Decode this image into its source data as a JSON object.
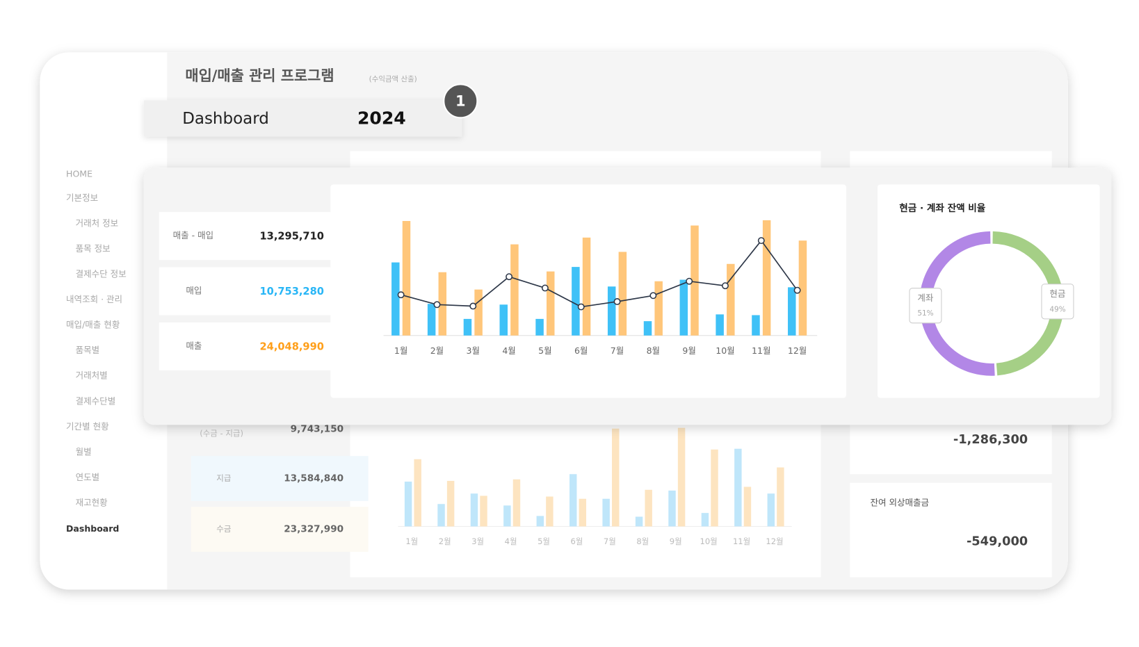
{
  "header": {
    "title": "매입/매출 관리 프로그램",
    "subtitle": "(수익금액 산출)"
  },
  "badge": {
    "label": "Dashboard",
    "year": "2024",
    "step": "1"
  },
  "sidebar": [
    "HOME",
    "기본정보",
    "거래처 정보",
    "품목 정보",
    "결제수단 정보",
    "내역조회 · 관리",
    "매입/매출 현황",
    "품목별",
    "거래처별",
    "결제수단별",
    "기간별 현황",
    "월별",
    "연도별",
    "재고현황",
    "Dashboard"
  ],
  "summary": [
    {
      "label": "매출 - 매입",
      "value": "13,295,710"
    },
    {
      "label": "매입",
      "value": "10,753,280"
    },
    {
      "label": "매출",
      "value": "24,048,990"
    }
  ],
  "back_summary": [
    {
      "label": "(수금 - 지급)",
      "value": "9,743,150"
    },
    {
      "label": "지급",
      "value": "13,584,840"
    },
    {
      "label": "수금",
      "value": "23,327,990"
    }
  ],
  "back_cards": [
    {
      "value": "-1,286,300"
    },
    {
      "label": "잔여 외상매출금",
      "value": "-549,000"
    }
  ],
  "chart_data": [
    {
      "type": "bar",
      "categories": [
        "1월",
        "2월",
        "3월",
        "4월",
        "5월",
        "6월",
        "7월",
        "8월",
        "9월",
        "10월",
        "11월",
        "12월"
      ],
      "series": [
        {
          "color": "#3fc1f7",
          "values": [
            97,
            42,
            22,
            41,
            22,
            91,
            65,
            19,
            74,
            28,
            27,
            64
          ]
        },
        {
          "color": "#ffc67a",
          "values": [
            152,
            84,
            61,
            121,
            85,
            130,
            111,
            72,
            146,
            95,
            153,
            126
          ]
        },
        {
          "type": "line",
          "color": "#2d3748",
          "values": [
            54,
            41,
            39,
            78,
            63,
            38,
            45,
            53,
            72,
            66,
            126,
            60
          ]
        }
      ],
      "ylim": [
        0,
        160
      ]
    },
    {
      "type": "pie",
      "title": "현금 · 계좌 잔액 비율",
      "categories": [
        "현금",
        "계좌"
      ],
      "values": [
        49,
        51
      ],
      "value_labels": [
        "49%",
        "51%"
      ],
      "colors": [
        "#a5cf86",
        "#b287e6"
      ]
    },
    {
      "type": "bar",
      "categories": [
        "1월",
        "2월",
        "3월",
        "4월",
        "5월",
        "6월",
        "7월",
        "8월",
        "9월",
        "10월",
        "11월",
        "12월"
      ],
      "series": [
        {
          "color": "#bfe6fa",
          "values": [
            60,
            30,
            44,
            28,
            14,
            70,
            37,
            13,
            48,
            18,
            104,
            44
          ]
        },
        {
          "color": "#fde4c0",
          "values": [
            90,
            61,
            41,
            63,
            40,
            37,
            131,
            49,
            132,
            103,
            53,
            79
          ]
        }
      ],
      "ylim": [
        0,
        140
      ]
    }
  ]
}
